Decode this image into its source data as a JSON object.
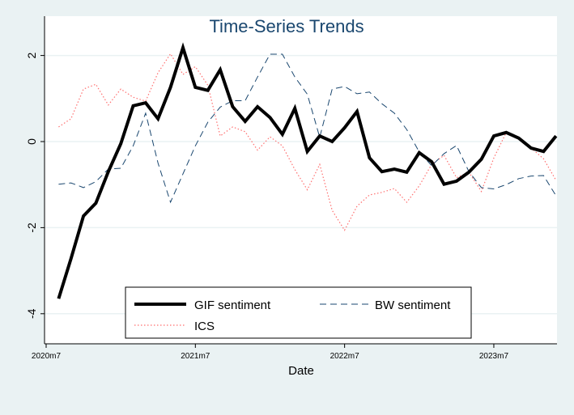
{
  "chart_data": {
    "type": "line",
    "title": "Time-Series Trends",
    "xlabel": "Date",
    "ylabel": "",
    "x_ticks": [
      "2020m7",
      "2021m7",
      "2022m7",
      "2023m7"
    ],
    "y_ticks": [
      -4,
      -2,
      0,
      2
    ],
    "ylim": [
      -4.7,
      2.9
    ],
    "xlim": [
      "2020m7",
      "2023m12"
    ],
    "grid": "horizontal",
    "legend_position": "bottom-inside",
    "x": [
      "2020m8",
      "2020m9",
      "2020m10",
      "2020m11",
      "2020m12",
      "2021m1",
      "2021m2",
      "2021m3",
      "2021m4",
      "2021m5",
      "2021m6",
      "2021m7",
      "2021m8",
      "2021m9",
      "2021m10",
      "2021m11",
      "2021m12",
      "2022m1",
      "2022m2",
      "2022m3",
      "2022m4",
      "2022m5",
      "2022m6",
      "2022m7",
      "2022m8",
      "2022m9",
      "2022m10",
      "2022m11",
      "2022m12",
      "2023m1",
      "2023m2",
      "2023m3",
      "2023m4",
      "2023m5",
      "2023m6",
      "2023m7",
      "2023m8",
      "2023m9",
      "2023m10",
      "2023m11",
      "2023m12"
    ],
    "series": [
      {
        "name": "GIF sentiment",
        "color": "#000000",
        "style": "solid-thick",
        "values": [
          -3.65,
          -2.72,
          -1.73,
          -1.43,
          -0.7,
          -0.05,
          0.83,
          0.9,
          0.53,
          1.26,
          2.18,
          1.26,
          1.19,
          1.67,
          0.81,
          0.47,
          0.81,
          0.56,
          0.17,
          0.77,
          -0.23,
          0.13,
          0.0,
          0.32,
          0.7,
          -0.38,
          -0.7,
          -0.64,
          -0.71,
          -0.26,
          -0.47,
          -0.99,
          -0.92,
          -0.71,
          -0.41,
          0.13,
          0.21,
          0.08,
          -0.15,
          -0.23,
          0.13
        ]
      },
      {
        "name": "BW sentiment",
        "color": "#1a476f",
        "style": "dashed",
        "values": [
          -0.99,
          -0.96,
          -1.07,
          -0.93,
          -0.64,
          -0.62,
          -0.1,
          0.66,
          -0.5,
          -1.41,
          -0.75,
          -0.1,
          0.45,
          0.8,
          0.95,
          0.95,
          1.5,
          2.03,
          2.03,
          1.5,
          1.1,
          0.1,
          1.22,
          1.28,
          1.11,
          1.15,
          0.88,
          0.66,
          0.28,
          -0.24,
          -0.56,
          -0.28,
          -0.09,
          -0.7,
          -1.07,
          -1.1,
          -1.0,
          -0.86,
          -0.8,
          -0.79,
          -1.26
        ]
      },
      {
        "name": "ICS",
        "color": "#ff6f6f",
        "style": "dotted",
        "values": [
          0.34,
          0.53,
          1.22,
          1.33,
          0.85,
          1.22,
          1.03,
          0.94,
          1.6,
          2.04,
          1.56,
          1.74,
          1.31,
          0.13,
          0.34,
          0.23,
          -0.2,
          0.11,
          -0.1,
          -0.65,
          -1.12,
          -0.53,
          -1.6,
          -2.06,
          -1.5,
          -1.24,
          -1.18,
          -1.09,
          -1.41,
          -1.03,
          -0.53,
          -0.32,
          -0.84,
          -0.71,
          -1.16,
          -0.38,
          0.21,
          0.06,
          -0.15,
          -0.4,
          -0.9
        ]
      }
    ]
  }
}
